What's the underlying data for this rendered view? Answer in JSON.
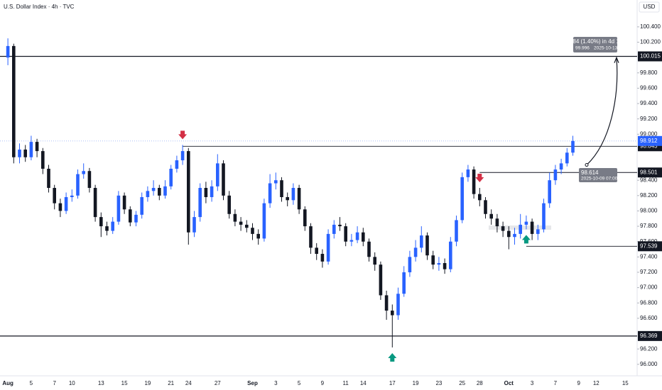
{
  "chart_data": {
    "type": "candlestick",
    "title": "U.S. Dollar Index · 4h · TVC",
    "currency": "USD",
    "up_color": "#2962ff",
    "down_color": "#131722",
    "ylim": [
      95.85,
      100.75
    ],
    "yticks": [
      {
        "value": 100.4,
        "label": "100.400"
      },
      {
        "value": 100.2,
        "label": "100.200"
      },
      {
        "value": 99.8,
        "label": "99.800"
      },
      {
        "value": 99.6,
        "label": "99.600"
      },
      {
        "value": 99.4,
        "label": "99.400"
      },
      {
        "value": 99.2,
        "label": "99.200"
      },
      {
        "value": 99.0,
        "label": "99.000"
      },
      {
        "value": 98.4,
        "label": "98.400"
      },
      {
        "value": 98.2,
        "label": "98.200"
      },
      {
        "value": 98.0,
        "label": "98.000"
      },
      {
        "value": 97.8,
        "label": "97.800"
      },
      {
        "value": 97.6,
        "label": "97.600"
      },
      {
        "value": 97.4,
        "label": "97.400"
      },
      {
        "value": 97.2,
        "label": "97.200"
      },
      {
        "value": 97.0,
        "label": "97.000"
      },
      {
        "value": 96.8,
        "label": "96.800"
      },
      {
        "value": 96.6,
        "label": "96.600"
      },
      {
        "value": 96.2,
        "label": "96.200"
      },
      {
        "value": 96.0,
        "label": "96.000"
      }
    ],
    "categories": [
      "Aug",
      null,
      null,
      null,
      "5",
      null,
      null,
      null,
      "7",
      null,
      null,
      "10",
      null,
      null,
      null,
      null,
      "13",
      null,
      null,
      null,
      "15",
      null,
      null,
      null,
      "19",
      null,
      null,
      null,
      "21",
      null,
      null,
      "24",
      null,
      null,
      null,
      null,
      "27",
      null,
      null,
      null,
      null,
      null,
      "Sep",
      null,
      null,
      null,
      "3",
      null,
      null,
      null,
      "5",
      null,
      null,
      null,
      "9",
      null,
      null,
      null,
      "11",
      null,
      null,
      "14",
      null,
      null,
      null,
      null,
      "17",
      null,
      null,
      null,
      "19",
      null,
      null,
      null,
      "23",
      null,
      null,
      null,
      "25",
      null,
      null,
      "28",
      null,
      null,
      null,
      null,
      "Oct",
      null,
      null,
      null,
      "3",
      null,
      null,
      null,
      "7",
      null,
      null,
      null,
      "9",
      null,
      null,
      "12",
      null,
      null,
      null,
      null,
      "15",
      null
    ],
    "open": [
      100.0,
      100.15,
      98.7,
      98.8,
      98.7,
      98.9,
      98.78,
      98.55,
      98.3,
      98.1,
      98.0,
      98.18,
      98.2,
      98.48,
      98.52,
      98.3,
      97.92,
      97.8,
      97.74,
      97.86,
      98.2,
      98.02,
      97.85,
      97.95,
      98.18,
      98.26,
      98.3,
      98.2,
      98.32,
      98.55,
      98.66,
      98.78,
      97.72,
      97.92,
      98.3,
      98.18,
      98.32,
      98.62,
      98.2,
      97.96,
      97.86,
      97.82,
      97.78,
      97.7,
      97.64,
      98.1,
      98.36,
      98.4,
      98.18,
      98.14,
      98.3,
      98.02,
      97.8,
      97.52,
      97.44,
      97.34,
      97.7,
      97.82,
      97.8,
      97.6,
      97.62,
      97.72,
      97.6,
      97.4,
      97.3,
      96.9,
      96.7,
      96.64,
      96.92,
      97.2,
      97.4,
      97.52,
      97.68,
      97.42,
      97.3,
      97.32,
      97.24,
      97.6,
      97.88,
      98.44,
      98.54,
      98.22,
      98.14,
      97.96,
      97.9,
      97.8,
      97.74,
      97.66,
      97.7,
      97.82,
      97.86,
      97.7,
      97.76,
      98.1,
      98.4,
      98.54,
      98.62,
      98.76,
      null,
      null,
      null,
      null,
      null,
      null,
      null,
      null,
      null,
      null
    ],
    "high": [
      100.25,
      100.18,
      98.88,
      98.86,
      98.98,
      98.94,
      98.82,
      98.6,
      98.34,
      98.16,
      98.24,
      98.28,
      98.54,
      98.62,
      98.56,
      98.34,
      97.98,
      97.86,
      97.92,
      98.26,
      98.24,
      98.06,
      98.0,
      98.24,
      98.32,
      98.4,
      98.34,
      98.4,
      98.6,
      98.72,
      98.86,
      98.82,
      98.0,
      98.36,
      98.38,
      98.4,
      98.74,
      98.66,
      98.26,
      98.02,
      97.92,
      97.88,
      97.84,
      97.76,
      98.16,
      98.48,
      98.5,
      98.44,
      98.24,
      98.36,
      98.34,
      98.06,
      97.84,
      97.58,
      97.5,
      97.76,
      97.88,
      97.92,
      97.84,
      97.7,
      97.8,
      97.78,
      97.64,
      97.46,
      97.34,
      96.96,
      96.78,
      97.0,
      97.28,
      97.48,
      97.62,
      97.8,
      97.72,
      97.48,
      97.4,
      97.38,
      97.66,
      97.94,
      98.5,
      98.6,
      98.58,
      98.3,
      98.18,
      98.02,
      97.96,
      97.86,
      97.8,
      97.78,
      97.96,
      97.94,
      97.9,
      97.82,
      98.16,
      98.5,
      98.6,
      98.68,
      98.82,
      98.98,
      null,
      null,
      null,
      null,
      null,
      null,
      null,
      null,
      null,
      null
    ],
    "low": [
      99.9,
      98.62,
      98.62,
      98.64,
      98.66,
      98.7,
      98.48,
      98.24,
      98.02,
      97.92,
      97.96,
      98.12,
      98.16,
      98.42,
      98.24,
      97.86,
      97.66,
      97.68,
      97.7,
      97.82,
      97.96,
      97.8,
      97.8,
      97.9,
      98.12,
      98.2,
      98.14,
      98.16,
      98.28,
      98.5,
      98.6,
      97.56,
      97.66,
      97.86,
      98.1,
      98.12,
      98.26,
      98.14,
      97.9,
      97.8,
      97.74,
      97.72,
      97.62,
      97.56,
      97.6,
      98.04,
      98.28,
      98.12,
      98.06,
      98.08,
      97.96,
      97.74,
      97.44,
      97.36,
      97.26,
      97.3,
      97.64,
      97.74,
      97.54,
      97.54,
      97.58,
      97.54,
      97.34,
      97.22,
      96.84,
      96.58,
      96.22,
      96.58,
      96.88,
      97.14,
      97.34,
      97.46,
      97.36,
      97.24,
      97.22,
      97.18,
      97.2,
      97.54,
      97.84,
      98.38,
      98.16,
      98.06,
      97.9,
      97.82,
      97.72,
      97.66,
      97.5,
      97.56,
      97.64,
      97.76,
      97.62,
      97.62,
      97.72,
      98.04,
      98.34,
      98.48,
      98.58,
      98.72,
      null,
      null,
      null,
      null,
      null,
      null,
      null,
      null,
      null,
      null
    ],
    "close": [
      100.15,
      98.7,
      98.8,
      98.7,
      98.9,
      98.78,
      98.55,
      98.3,
      98.1,
      98.0,
      98.18,
      98.2,
      98.48,
      98.52,
      98.3,
      97.92,
      97.8,
      97.74,
      97.86,
      98.2,
      98.02,
      97.85,
      97.95,
      98.18,
      98.26,
      98.3,
      98.2,
      98.32,
      98.55,
      98.66,
      98.78,
      97.72,
      97.92,
      98.3,
      98.18,
      98.32,
      98.62,
      98.2,
      97.96,
      97.86,
      97.82,
      97.78,
      97.7,
      97.64,
      98.1,
      98.36,
      98.4,
      98.18,
      98.14,
      98.3,
      98.02,
      97.8,
      97.52,
      97.44,
      97.34,
      97.7,
      97.82,
      97.8,
      97.6,
      97.62,
      97.72,
      97.6,
      97.4,
      97.3,
      96.9,
      96.7,
      96.64,
      96.92,
      97.2,
      97.4,
      97.52,
      97.68,
      97.42,
      97.3,
      97.32,
      97.24,
      97.6,
      97.88,
      98.44,
      98.54,
      98.22,
      98.14,
      97.96,
      97.9,
      97.8,
      97.74,
      97.66,
      97.7,
      97.82,
      97.86,
      97.7,
      97.76,
      98.1,
      98.4,
      98.54,
      98.62,
      98.76,
      98.912,
      null,
      null,
      null,
      null,
      null,
      null,
      null,
      null,
      null,
      null
    ],
    "levels": [
      100.015,
      98.843,
      98.501,
      97.539,
      96.369
    ],
    "measure": {
      "text": "1.384 (1.40%) in 4d 12h",
      "price": "99.996",
      "time": "2025-10-13 19:00"
    },
    "start": {
      "price": "98.614",
      "time": "2025-10-09 07:00"
    }
  }
}
